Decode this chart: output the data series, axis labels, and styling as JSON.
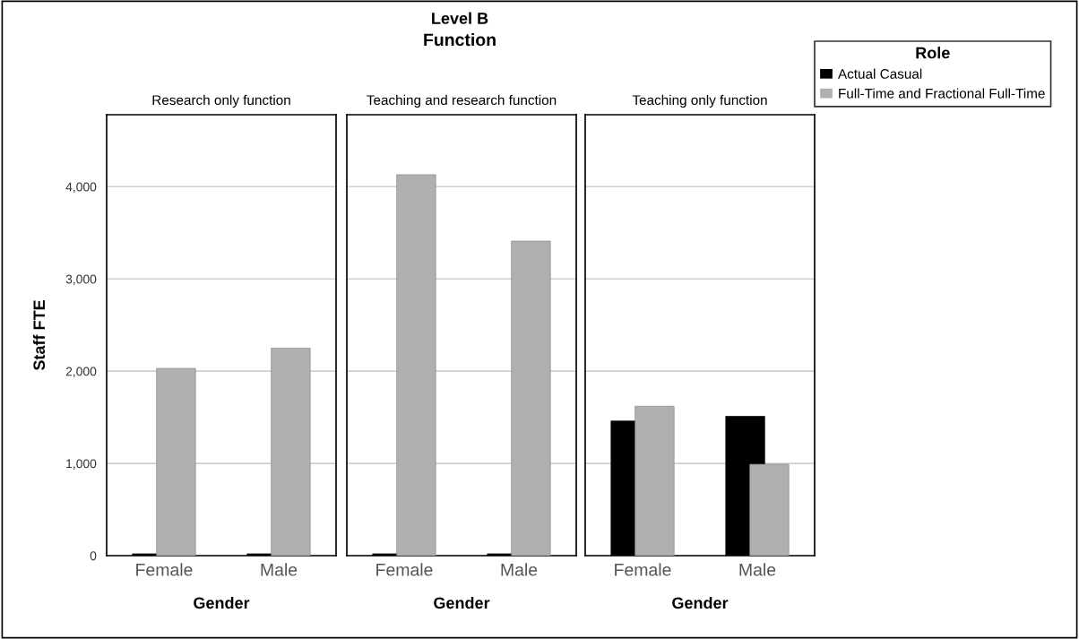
{
  "chart_data": [
    {
      "type": "bar",
      "title": "Research only function",
      "annotations": [
        "Level B",
        "Function"
      ],
      "xlabel": "Gender",
      "ylabel": "Staff FTE",
      "categories": [
        "Female",
        "Male"
      ],
      "legend_title": "Role",
      "legend": "right",
      "series": [
        {
          "name": "Actual Casual",
          "color": "#000000",
          "values": [
            20,
            20
          ]
        },
        {
          "name": "Full-Time and Fractional Full-Time",
          "color": "#b0b0b0",
          "values": [
            2030,
            2250
          ]
        }
      ],
      "ylim": [
        0,
        4780
      ],
      "yticks": [
        0,
        {
          "value": 1000,
          "label": "1,000"
        },
        {
          "value": 2000,
          "label": "2,000"
        },
        {
          "value": 3000,
          "label": "3,000"
        },
        {
          "value": 4000,
          "label": "4,000"
        }
      ],
      "grid": "y"
    },
    {
      "type": "bar",
      "title": "Teaching and research function",
      "xlabel": "Gender",
      "categories": [
        "Female",
        "Male"
      ],
      "series": [
        {
          "color": "#000000",
          "values": [
            20,
            20
          ]
        },
        {
          "color": "#b0b0b0",
          "values": [
            4130,
            3410
          ]
        }
      ],
      "ylim": [
        0,
        4780
      ],
      "yticks": [
        {
          "value": 0,
          "label": null
        },
        {
          "value": 1000,
          "label": null
        },
        {
          "value": 2000,
          "label": null
        },
        {
          "value": 3000,
          "label": null
        },
        {
          "value": 4000,
          "label": null
        }
      ],
      "grid": "y",
      "tick_labels": "x"
    },
    {
      "type": "bar",
      "title": "Teaching only function",
      "xlabel": "Gender",
      "categories": [
        "Female",
        "Male"
      ],
      "series": [
        {
          "color": "#000000",
          "values": [
            1460,
            1510
          ]
        },
        {
          "color": "#b0b0b0",
          "values": [
            1620,
            990
          ]
        }
      ],
      "ylim": [
        0,
        4780
      ],
      "yticks": [
        {
          "value": 0,
          "label": null
        },
        {
          "value": 1000,
          "label": null
        },
        {
          "value": 2000,
          "label": null
        },
        {
          "value": 3000,
          "label": null
        },
        {
          "value": 4000,
          "label": null
        }
      ],
      "grid": "y",
      "tick_labels": "x"
    }
  ]
}
